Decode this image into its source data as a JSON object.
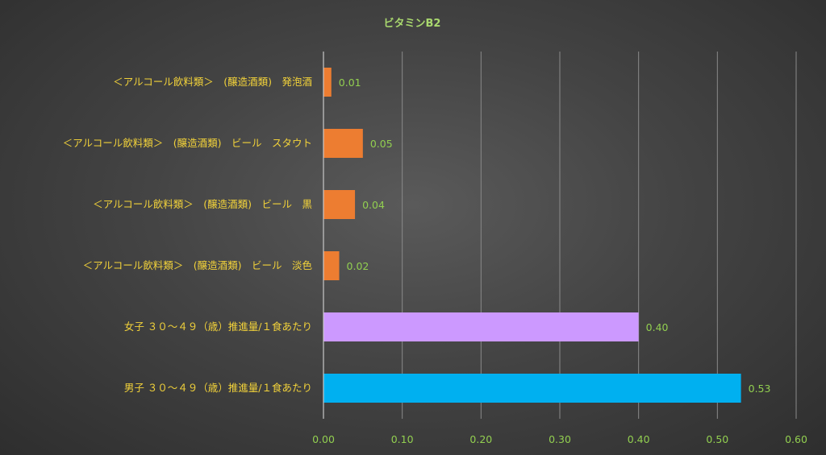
{
  "chart_data": {
    "type": "bar",
    "orientation": "horizontal",
    "title": "ビタミンB2",
    "categories": [
      "＜アルコール飲料類＞　(醸造酒類)　発泡酒",
      "＜アルコール飲料類＞　(醸造酒類)　ビール　スタウト",
      "＜アルコール飲料類＞　(醸造酒類)　ビール　黒",
      "＜アルコール飲料類＞　(醸造酒類)　ビール　淡色",
      "女子 ３０～４９（歳）推進量/１食あたり",
      "男子 ３０～４９（歳）推進量/１食あたり"
    ],
    "values": [
      0.01,
      0.05,
      0.04,
      0.02,
      0.4,
      0.53
    ],
    "data_labels": [
      "0.01",
      "0.05",
      "0.04",
      "0.02",
      "0.40",
      "0.53"
    ],
    "bar_colors": [
      "#ed7d31",
      "#ed7d31",
      "#ed7d31",
      "#ed7d31",
      "#cc99ff",
      "#00b0f0"
    ],
    "xlim": [
      0,
      0.6
    ],
    "xticks": [
      "0.00",
      "0.10",
      "0.20",
      "0.30",
      "0.40",
      "0.50",
      "0.60"
    ],
    "grid": true,
    "legend": "none"
  }
}
